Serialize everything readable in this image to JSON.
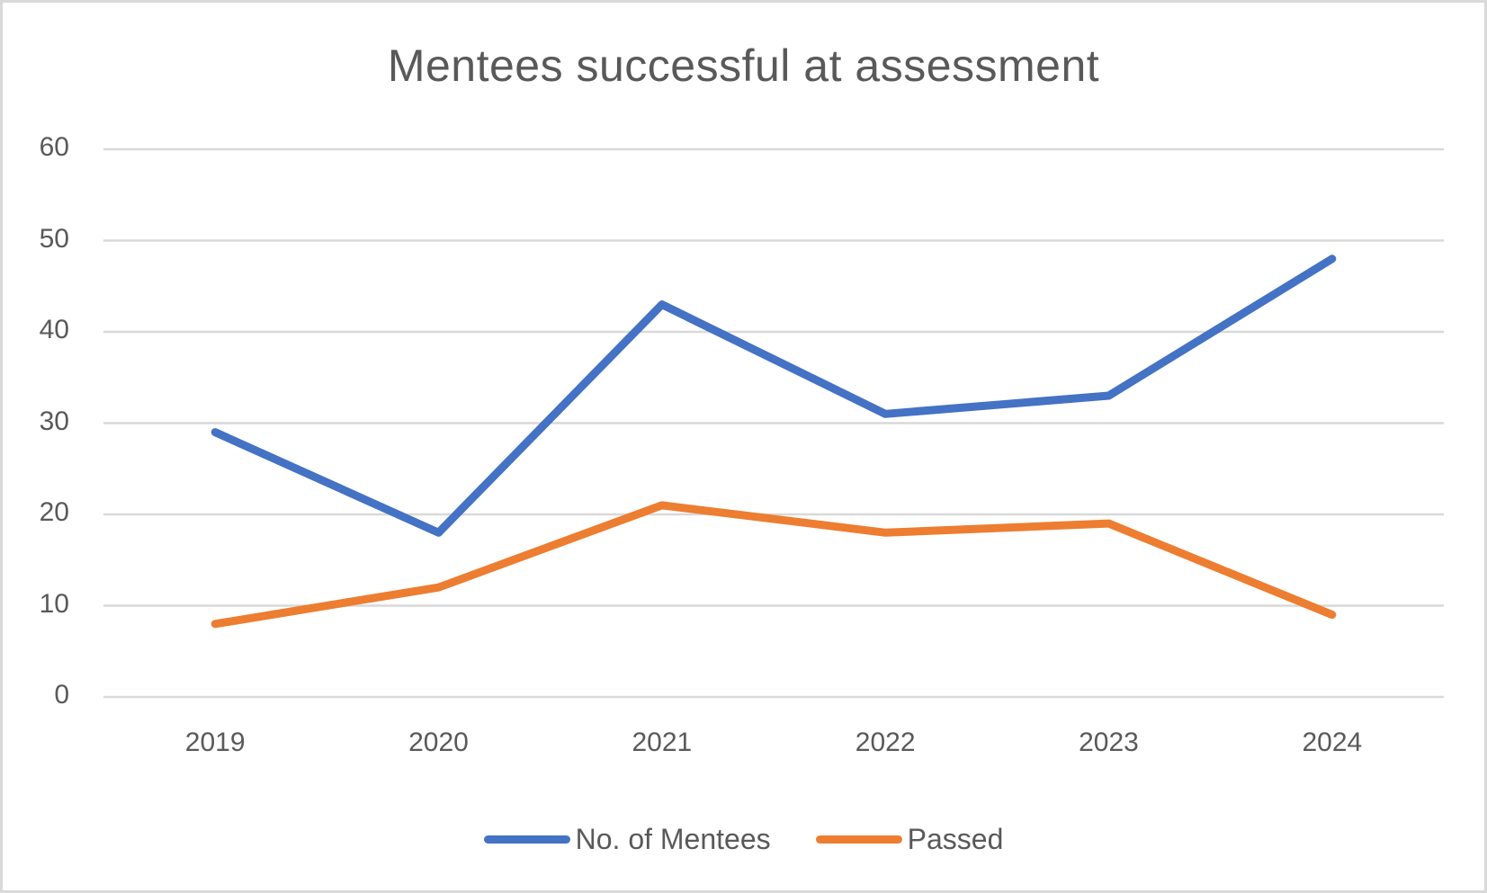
{
  "chart_data": {
    "type": "line",
    "title": "Mentees successful at assessment",
    "xlabel": "",
    "ylabel": "",
    "categories": [
      "2019",
      "2020",
      "2021",
      "2022",
      "2023",
      "2024"
    ],
    "series": [
      {
        "name": "No. of Mentees",
        "color": "#4472C4",
        "values": [
          29,
          18,
          43,
          31,
          33,
          48
        ]
      },
      {
        "name": "Passed",
        "color": "#ED7D31",
        "values": [
          8,
          12,
          21,
          18,
          19,
          9
        ]
      }
    ],
    "ylim": [
      0,
      60
    ],
    "yticks": [
      "0",
      "10",
      "20",
      "30",
      "40",
      "50",
      "60"
    ],
    "grid": true,
    "legend_position": "bottom"
  },
  "colors": {
    "gridline": "#d9d9d9",
    "text": "#595959",
    "border": "#d9d9d9"
  }
}
